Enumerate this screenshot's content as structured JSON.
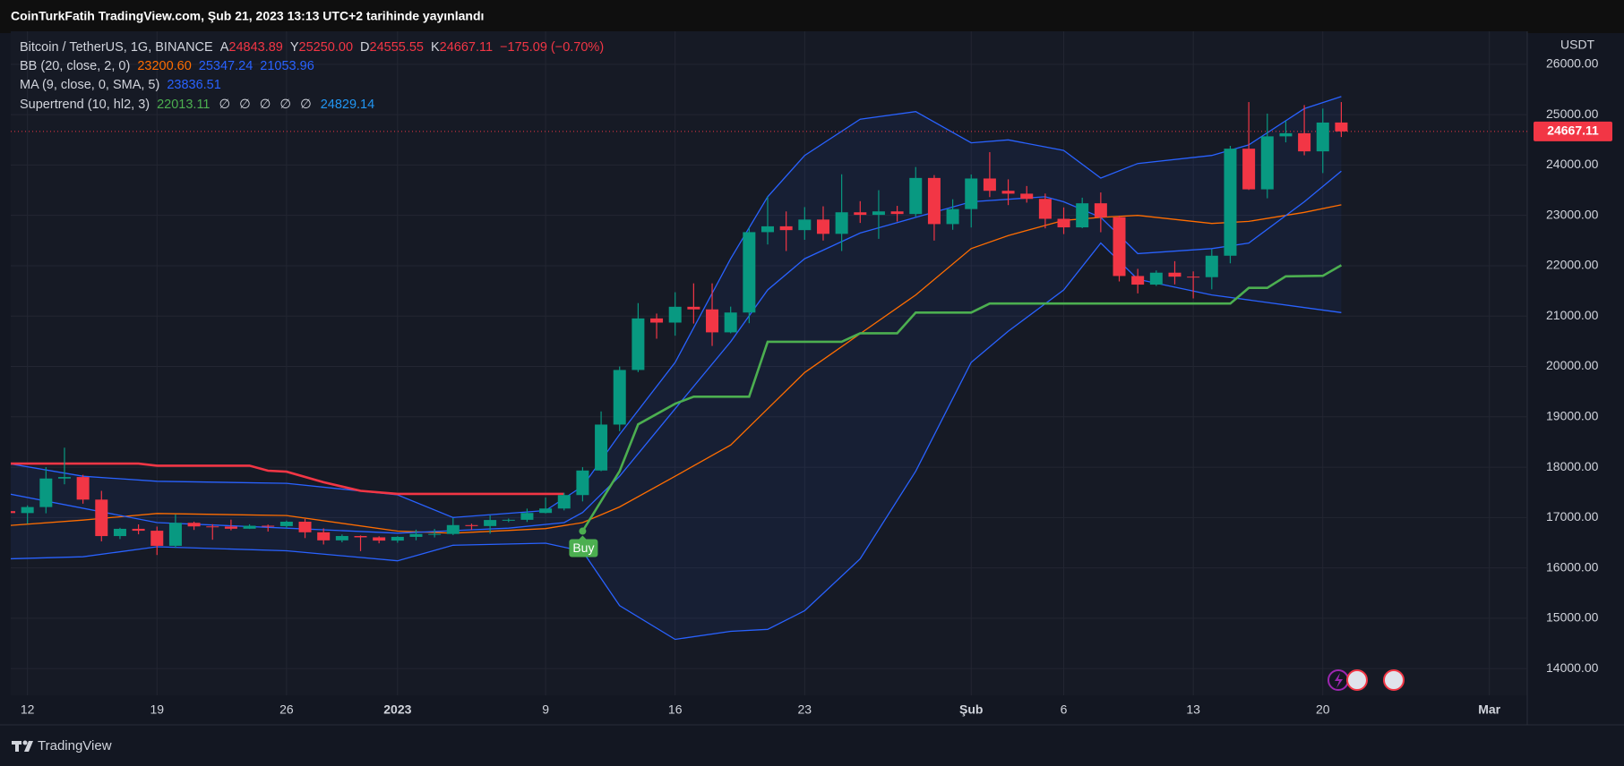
{
  "header": {
    "title": "CoinTurkFatih TradingView.com, Şub 21, 2023 13:13 UTC+2 tarihinde yayınlandı"
  },
  "footer": {
    "brand": "TradingView"
  },
  "chart_data": {
    "type": "candlestick",
    "legend": {
      "symbol": "Bitcoin / TetherUS, 1G, BINANCE",
      "ohlc": [
        {
          "label": "A",
          "value": "24843.89"
        },
        {
          "label": "Y",
          "value": "25250.00"
        },
        {
          "label": "D",
          "value": "24555.55"
        },
        {
          "label": "K",
          "value": "24667.11"
        }
      ],
      "change": "−175.09 (−0.70%)",
      "bb_title": "BB (20, close, 2, 0)",
      "bb_values": [
        "23200.60",
        "25347.24",
        "21053.96"
      ],
      "ma_title": "MA (9, close, 0, SMA, 5)",
      "ma_value": "23836.51",
      "st_title": "Supertrend (10, hl2, 3)",
      "st_values": [
        "22013.11",
        "∅",
        "∅",
        "∅",
        "∅",
        "∅",
        "24829.14"
      ]
    },
    "y_unit": "USDT",
    "last_price": 24667.11,
    "buy_label": "Buy",
    "up_color": "#089981",
    "down_color": "#f23645",
    "xlim": [
      0,
      82
    ],
    "xticks": [
      {
        "value": 1,
        "label": "12"
      },
      {
        "value": 8,
        "label": "19"
      },
      {
        "value": 15,
        "label": "26"
      },
      {
        "value": 21,
        "label": "2023"
      },
      {
        "value": 29,
        "label": "9"
      },
      {
        "value": 36,
        "label": "16"
      },
      {
        "value": 43,
        "label": "23"
      },
      {
        "value": 52,
        "label": "Şub"
      },
      {
        "value": 57,
        "label": "6"
      },
      {
        "value": 64,
        "label": "13"
      },
      {
        "value": 71,
        "label": "20"
      },
      {
        "value": 80,
        "label": "Mar"
      }
    ],
    "ylim": [
      13470,
      26660
    ],
    "yticks": [
      {
        "value": 14000,
        "label": "14000.00"
      },
      {
        "value": 15000,
        "label": "15000.00"
      },
      {
        "value": 16000,
        "label": "16000.00"
      },
      {
        "value": 17000,
        "label": "17000.00"
      },
      {
        "value": 18000,
        "label": "18000.00"
      },
      {
        "value": 19000,
        "label": "19000.00"
      },
      {
        "value": 20000,
        "label": "20000.00"
      },
      {
        "value": 21000,
        "label": "21000.00"
      },
      {
        "value": 22000,
        "label": "22000.00"
      },
      {
        "value": 23000,
        "label": "23000.00"
      },
      {
        "value": 24000,
        "label": "24000.00"
      },
      {
        "value": 25000,
        "label": "25000.00"
      },
      {
        "value": 26000,
        "label": "26000.00"
      }
    ],
    "grid": true,
    "open": [
      17127,
      17089,
      17208,
      17775,
      17804,
      17356,
      16632,
      16776,
      16738,
      16438,
      16895,
      16824,
      16821,
      16778,
      16837,
      16830,
      16917,
      16707,
      16547,
      16633,
      16607,
      16542,
      16616,
      16673,
      16674,
      16850,
      16831,
      16951,
      16955,
      17091,
      17179,
      17446,
      17934,
      18846,
      19930,
      20954,
      20871,
      21185,
      21133,
      20677,
      21071,
      22667,
      22783,
      22707,
      22917,
      22633,
      23061,
      23010,
      23079,
      23027,
      23743,
      22827,
      23125,
      23732,
      23488,
      23431,
      23327,
      22932,
      22762,
      23240,
      22963,
      21796,
      21625,
      21862,
      21783,
      21773,
      22199,
      24324,
      23517,
      24569,
      24631,
      24271,
      24843.89
    ],
    "high": [
      17266,
      17241,
      18000,
      18387,
      17848,
      17530,
      16796,
      16864,
      16820,
      17061,
      16918,
      16868,
      16958,
      16866,
      16861,
      16939,
      16972,
      16785,
      16664,
      16644,
      16628,
      16630,
      16760,
      16773,
      16990,
      16879,
      17041,
      16981,
      17177,
      17398,
      17490,
      18000,
      19107,
      19999,
      21258,
      21050,
      21474,
      21650,
      21650,
      21188,
      22755,
      23371,
      23078,
      23165,
      23180,
      23816,
      23282,
      23500,
      23189,
      23960,
      23800,
      23320,
      23812,
      24255,
      23715,
      23583,
      23433,
      23158,
      23351,
      23455,
      22996,
      21938,
      21906,
      22090,
      21888,
      22327,
      24380,
      25250,
      25021,
      24877,
      25190,
      25121,
      25250
    ],
    "low": [
      17071,
      16875,
      17084,
      17660,
      17275,
      16527,
      16573,
      16667,
      16256,
      16398,
      16754,
      16559,
      16746,
      16773,
      16721,
      16786,
      16592,
      16465,
      16508,
      16333,
      16488,
      16499,
      16548,
      16605,
      16652,
      16753,
      16679,
      16908,
      16912,
      17082,
      17142,
      17320,
      17920,
      18714,
      19888,
      20551,
      20611,
      20852,
      20407,
      20659,
      20859,
      22422,
      22292,
      22515,
      22500,
      22292,
      22850,
      22534,
      22877,
      22974,
      22500,
      22714,
      22760,
      23363,
      23204,
      23253,
      22743,
      22628,
      22745,
      22665,
      21688,
      21451,
      21599,
      21630,
      21351,
      21531,
      22047,
      23505,
      23339,
      24450,
      24193,
      23840,
      24555.55
    ],
    "close": [
      17089,
      17208,
      17775,
      17804,
      17356,
      16632,
      16776,
      16738,
      16438,
      16895,
      16824,
      16821,
      16778,
      16837,
      16830,
      16917,
      16707,
      16547,
      16633,
      16607,
      16542,
      16616,
      16673,
      16674,
      16850,
      16831,
      16951,
      16955,
      17091,
      17179,
      17446,
      17934,
      18846,
      19930,
      20954,
      20871,
      21185,
      21133,
      20677,
      21071,
      22667,
      22783,
      22707,
      22917,
      22633,
      23061,
      23010,
      23079,
      23027,
      23743,
      22827,
      23125,
      23732,
      23488,
      23431,
      23327,
      22932,
      22762,
      23240,
      22963,
      21796,
      21625,
      21862,
      21783,
      21773,
      22199,
      24324,
      23517,
      24569,
      24631,
      24271,
      24843,
      24667.11
    ],
    "bands": {
      "band_color": "#2962ff",
      "basis_color": "#ff6d00",
      "x": [
        0,
        4,
        8,
        15,
        21,
        24,
        29,
        31,
        33,
        36,
        39,
        41,
        43,
        46,
        49,
        52,
        54,
        57,
        59,
        61,
        65,
        67,
        70,
        72
      ],
      "upper": [
        18070,
        17820,
        17720,
        17680,
        17450,
        17000,
        17140,
        17620,
        18650,
        20080,
        22140,
        23370,
        24190,
        24910,
        25060,
        24440,
        24500,
        24290,
        23740,
        24030,
        24190,
        24400,
        25120,
        25360
      ],
      "lower": [
        16180,
        16220,
        16420,
        16340,
        16140,
        16450,
        16490,
        16330,
        15250,
        14580,
        14740,
        14780,
        15150,
        16180,
        17920,
        20080,
        20700,
        21520,
        22450,
        21730,
        21420,
        21320,
        21170,
        21070
      ],
      "basis": [
        16840,
        16950,
        17080,
        17040,
        16730,
        16690,
        16780,
        16900,
        17210,
        17820,
        18440,
        19160,
        19880,
        20650,
        21420,
        22340,
        22600,
        22900,
        22960,
        23000,
        22840,
        22880,
        23060,
        23210
      ]
    },
    "ma": {
      "color": "#2962ff",
      "x": [
        0,
        8,
        15,
        21,
        27,
        30,
        31,
        33,
        36,
        39,
        41,
        43,
        46,
        49,
        52,
        56,
        57,
        59,
        61,
        65,
        67,
        70,
        72
      ],
      "values": [
        17470,
        16900,
        16790,
        16690,
        16790,
        16900,
        17100,
        17820,
        19160,
        20490,
        21520,
        22140,
        22650,
        22960,
        23270,
        23370,
        23270,
        22960,
        22240,
        22340,
        22450,
        23270,
        23880
      ]
    },
    "supertrend": {
      "down": {
        "color": "#f23645",
        "x": [
          0,
          7,
          8,
          13,
          14,
          15,
          17,
          19,
          21,
          30
        ],
        "values": [
          18070,
          18070,
          18030,
          18030,
          17930,
          17910,
          17700,
          17530,
          17470,
          17470
        ]
      },
      "up": {
        "color": "#4caf50",
        "x": [
          31,
          33,
          34,
          36,
          37,
          40,
          41,
          45,
          46,
          48,
          49,
          52,
          53,
          66,
          67,
          68,
          69,
          71,
          72
        ],
        "values": [
          16730,
          17920,
          18850,
          19260,
          19400,
          19400,
          20490,
          20490,
          20660,
          20660,
          21070,
          21070,
          21250,
          21250,
          21560,
          21560,
          21790,
          21800,
          22010
        ]
      }
    }
  }
}
